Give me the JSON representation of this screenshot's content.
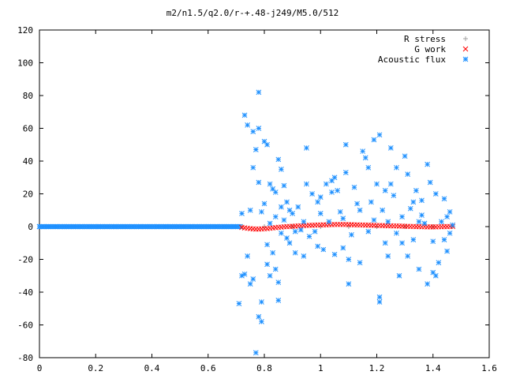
{
  "chart_data": {
    "type": "scatter",
    "title": "m2/n1.5/q2.0/r-+.48-j249/M5.0/512",
    "xlabel": "",
    "ylabel": "",
    "xlim": [
      0,
      1.6
    ],
    "ylim": [
      -80,
      120
    ],
    "x_ticks": [
      "0",
      "0.2",
      "0.4",
      "0.6",
      "0.8",
      "1",
      "1.2",
      "1.4",
      "1.6"
    ],
    "y_ticks": [
      "120",
      "100",
      "80",
      "60",
      "40",
      "20",
      "0",
      "-20",
      "-40",
      "-60",
      "-80"
    ],
    "grid": false,
    "legend_position": "top-right",
    "series": [
      {
        "name": "R stress",
        "marker": "plus",
        "color": "#a0a0a0",
        "points": [
          [
            0.72,
            0
          ],
          [
            0.8,
            0
          ],
          [
            0.9,
            0
          ],
          [
            1.0,
            0
          ],
          [
            1.1,
            0
          ],
          [
            1.2,
            0
          ],
          [
            1.3,
            0
          ],
          [
            1.4,
            0
          ],
          [
            1.47,
            0
          ]
        ]
      },
      {
        "name": "G work",
        "marker": "cross",
        "color": "#ff0000",
        "points": [
          [
            0.72,
            -0.5
          ],
          [
            0.73,
            -0.8
          ],
          [
            0.74,
            -1.0
          ],
          [
            0.75,
            -1.2
          ],
          [
            0.76,
            -1.4
          ],
          [
            0.77,
            -1.5
          ],
          [
            0.78,
            -1.5
          ],
          [
            0.79,
            -1.4
          ],
          [
            0.8,
            -1.3
          ],
          [
            0.81,
            -1.2
          ],
          [
            0.82,
            -1.0
          ],
          [
            0.83,
            -0.8
          ],
          [
            0.84,
            -0.6
          ],
          [
            0.85,
            -0.4
          ],
          [
            0.86,
            -0.3
          ],
          [
            0.87,
            -0.1
          ],
          [
            0.88,
            0.0
          ],
          [
            0.89,
            0.1
          ],
          [
            0.9,
            0.2
          ],
          [
            0.91,
            0.3
          ],
          [
            0.92,
            0.4
          ],
          [
            0.93,
            0.5
          ],
          [
            0.94,
            0.6
          ],
          [
            0.95,
            0.7
          ],
          [
            0.96,
            0.8
          ],
          [
            0.97,
            0.8
          ],
          [
            0.98,
            0.9
          ],
          [
            0.99,
            1.0
          ],
          [
            1.0,
            1.0
          ],
          [
            1.01,
            1.1
          ],
          [
            1.02,
            1.1
          ],
          [
            1.03,
            1.2
          ],
          [
            1.04,
            1.2
          ],
          [
            1.05,
            1.3
          ],
          [
            1.06,
            1.3
          ],
          [
            1.07,
            1.3
          ],
          [
            1.08,
            1.3
          ],
          [
            1.09,
            1.3
          ],
          [
            1.1,
            1.2
          ],
          [
            1.11,
            1.2
          ],
          [
            1.12,
            1.1
          ],
          [
            1.13,
            1.1
          ],
          [
            1.14,
            1.0
          ],
          [
            1.15,
            1.0
          ],
          [
            1.16,
            0.9
          ],
          [
            1.17,
            0.9
          ],
          [
            1.18,
            0.8
          ],
          [
            1.19,
            0.8
          ],
          [
            1.2,
            0.7
          ],
          [
            1.21,
            0.7
          ],
          [
            1.22,
            0.6
          ],
          [
            1.23,
            0.6
          ],
          [
            1.24,
            0.5
          ],
          [
            1.25,
            0.5
          ],
          [
            1.26,
            0.4
          ],
          [
            1.27,
            0.4
          ],
          [
            1.28,
            0.3
          ],
          [
            1.29,
            0.3
          ],
          [
            1.3,
            0.2
          ],
          [
            1.31,
            0.2
          ],
          [
            1.32,
            0.1
          ],
          [
            1.33,
            0.1
          ],
          [
            1.34,
            0.0
          ],
          [
            1.35,
            0.0
          ],
          [
            1.36,
            -0.1
          ],
          [
            1.37,
            -0.1
          ],
          [
            1.38,
            -0.2
          ],
          [
            1.39,
            -0.2
          ],
          [
            1.4,
            -0.2
          ],
          [
            1.41,
            -0.2
          ],
          [
            1.42,
            -0.1
          ],
          [
            1.43,
            -0.1
          ],
          [
            1.44,
            0.0
          ],
          [
            1.45,
            0.0
          ],
          [
            1.46,
            0.1
          ],
          [
            1.47,
            0.1
          ]
        ]
      },
      {
        "name": "Acoustic flux",
        "marker": "star",
        "color": "#1e90ff",
        "points": [
          [
            0.0,
            0
          ],
          [
            0.03,
            0
          ],
          [
            0.06,
            0
          ],
          [
            0.09,
            0
          ],
          [
            0.12,
            0
          ],
          [
            0.15,
            0
          ],
          [
            0.18,
            0
          ],
          [
            0.21,
            0
          ],
          [
            0.24,
            0
          ],
          [
            0.27,
            0
          ],
          [
            0.3,
            0
          ],
          [
            0.33,
            0
          ],
          [
            0.36,
            0
          ],
          [
            0.39,
            0
          ],
          [
            0.42,
            0
          ],
          [
            0.45,
            0
          ],
          [
            0.48,
            0
          ],
          [
            0.51,
            0
          ],
          [
            0.54,
            0
          ],
          [
            0.57,
            0
          ],
          [
            0.6,
            0
          ],
          [
            0.63,
            0
          ],
          [
            0.66,
            0
          ],
          [
            0.69,
            0
          ],
          [
            0.71,
            -47
          ],
          [
            0.72,
            -30
          ],
          [
            0.72,
            8
          ],
          [
            0.73,
            -29
          ],
          [
            0.73,
            68
          ],
          [
            0.74,
            62
          ],
          [
            0.74,
            -18
          ],
          [
            0.75,
            -35
          ],
          [
            0.75,
            10
          ],
          [
            0.76,
            36
          ],
          [
            0.76,
            -32
          ],
          [
            0.76,
            58
          ],
          [
            0.77,
            47
          ],
          [
            0.77,
            -77
          ],
          [
            0.78,
            82
          ],
          [
            0.78,
            -55
          ],
          [
            0.78,
            60
          ],
          [
            0.78,
            27
          ],
          [
            0.79,
            -46
          ],
          [
            0.79,
            -58
          ],
          [
            0.79,
            9
          ],
          [
            0.8,
            52
          ],
          [
            0.8,
            14
          ],
          [
            0.81,
            50
          ],
          [
            0.81,
            -23
          ],
          [
            0.81,
            -11
          ],
          [
            0.82,
            26
          ],
          [
            0.82,
            -30
          ],
          [
            0.82,
            2
          ],
          [
            0.83,
            23
          ],
          [
            0.83,
            -16
          ],
          [
            0.84,
            21
          ],
          [
            0.84,
            -26
          ],
          [
            0.84,
            6
          ],
          [
            0.85,
            41
          ],
          [
            0.85,
            -34
          ],
          [
            0.85,
            -45
          ],
          [
            0.86,
            35
          ],
          [
            0.86,
            -4
          ],
          [
            0.86,
            12
          ],
          [
            0.87,
            25
          ],
          [
            0.87,
            4
          ],
          [
            0.88,
            15
          ],
          [
            0.88,
            -7
          ],
          [
            0.89,
            10
          ],
          [
            0.89,
            -10
          ],
          [
            0.9,
            8
          ],
          [
            0.91,
            -16
          ],
          [
            0.91,
            -3
          ],
          [
            0.92,
            12
          ],
          [
            0.93,
            -2
          ],
          [
            0.94,
            -18
          ],
          [
            0.94,
            3
          ],
          [
            0.95,
            48
          ],
          [
            0.95,
            26
          ],
          [
            0.96,
            -6
          ],
          [
            0.97,
            20
          ],
          [
            0.98,
            -3
          ],
          [
            0.99,
            15
          ],
          [
            0.99,
            -12
          ],
          [
            1.0,
            8
          ],
          [
            1.0,
            18
          ],
          [
            1.01,
            -14
          ],
          [
            1.02,
            26
          ],
          [
            1.03,
            3
          ],
          [
            1.04,
            28
          ],
          [
            1.04,
            21
          ],
          [
            1.05,
            30
          ],
          [
            1.05,
            -17
          ],
          [
            1.06,
            22
          ],
          [
            1.07,
            9
          ],
          [
            1.08,
            5
          ],
          [
            1.08,
            -13
          ],
          [
            1.09,
            50
          ],
          [
            1.09,
            33
          ],
          [
            1.1,
            -20
          ],
          [
            1.1,
            -35
          ],
          [
            1.11,
            -5
          ],
          [
            1.12,
            24
          ],
          [
            1.13,
            14
          ],
          [
            1.14,
            10
          ],
          [
            1.14,
            -22
          ],
          [
            1.15,
            46
          ],
          [
            1.16,
            42
          ],
          [
            1.17,
            36
          ],
          [
            1.17,
            -3
          ],
          [
            1.18,
            15
          ],
          [
            1.19,
            53
          ],
          [
            1.19,
            4
          ],
          [
            1.2,
            26
          ],
          [
            1.21,
            -46
          ],
          [
            1.21,
            -43
          ],
          [
            1.21,
            56
          ],
          [
            1.22,
            10
          ],
          [
            1.23,
            -10
          ],
          [
            1.23,
            22
          ],
          [
            1.24,
            -18
          ],
          [
            1.24,
            3
          ],
          [
            1.25,
            48
          ],
          [
            1.25,
            26
          ],
          [
            1.26,
            19
          ],
          [
            1.27,
            -4
          ],
          [
            1.27,
            36
          ],
          [
            1.28,
            -30
          ],
          [
            1.29,
            6
          ],
          [
            1.29,
            -10
          ],
          [
            1.3,
            43
          ],
          [
            1.31,
            32
          ],
          [
            1.31,
            -18
          ],
          [
            1.32,
            11
          ],
          [
            1.33,
            15
          ],
          [
            1.33,
            -8
          ],
          [
            1.34,
            22
          ],
          [
            1.35,
            3
          ],
          [
            1.35,
            -26
          ],
          [
            1.36,
            7
          ],
          [
            1.36,
            16
          ],
          [
            1.37,
            2
          ],
          [
            1.38,
            -35
          ],
          [
            1.38,
            38
          ],
          [
            1.39,
            27
          ],
          [
            1.4,
            -9
          ],
          [
            1.4,
            -28
          ],
          [
            1.41,
            -30
          ],
          [
            1.41,
            20
          ],
          [
            1.42,
            -22
          ],
          [
            1.43,
            3
          ],
          [
            1.44,
            -8
          ],
          [
            1.44,
            17
          ],
          [
            1.45,
            -15
          ],
          [
            1.45,
            6
          ],
          [
            1.46,
            9
          ],
          [
            1.46,
            -4
          ],
          [
            1.47,
            1
          ]
        ]
      }
    ]
  }
}
